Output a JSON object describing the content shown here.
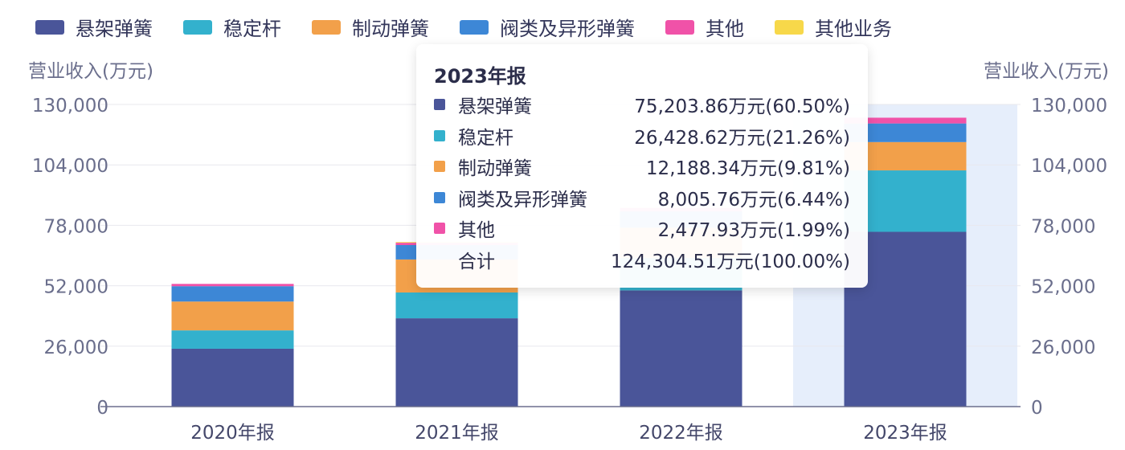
{
  "chart_data": {
    "type": "bar",
    "stacked": true,
    "categories": [
      "2020年报",
      "2021年报",
      "2022年报",
      "2023年报"
    ],
    "series": [
      {
        "name": "悬架弹簧",
        "color": "#4a5599",
        "values": [
          24900,
          38000,
          50000,
          75203.86
        ]
      },
      {
        "name": "稳定杆",
        "color": "#33b1cd",
        "values": [
          7900,
          11100,
          14000,
          26428.62
        ]
      },
      {
        "name": "制动弹簧",
        "color": "#f2a04a",
        "values": [
          12400,
          14200,
          13000,
          12188.34
        ]
      },
      {
        "name": "阀类及异形弹簧",
        "color": "#3d87d6",
        "values": [
          6600,
          6200,
          7000,
          8005.76
        ]
      },
      {
        "name": "其他",
        "color": "#f052a8",
        "values": [
          1000,
          1000,
          1500,
          2477.93
        ]
      },
      {
        "name": "其他业务",
        "color": "#f7d84a",
        "values": [
          0,
          300,
          0,
          0
        ]
      }
    ],
    "ylabel_left": "营业收入(万元)",
    "ylabel_right": "营业收入(万元)",
    "ylim": [
      0,
      130000
    ],
    "yticks": [
      0,
      26000,
      52000,
      78000,
      104000,
      130000
    ],
    "ytick_labels": [
      "0",
      "26,000",
      "52,000",
      "78,000",
      "104,000",
      "130,000"
    ],
    "grid": true,
    "legend": "top",
    "highlighted_category": "2023年报"
  },
  "tooltip": {
    "title": "2023年报",
    "rows": [
      {
        "label": "悬架弹簧",
        "value": "75,203.86万元(60.50%)",
        "color": "#4a5599"
      },
      {
        "label": "稳定杆",
        "value": "26,428.62万元(21.26%)",
        "color": "#33b1cd"
      },
      {
        "label": "制动弹簧",
        "value": "12,188.34万元(9.81%)",
        "color": "#f2a04a"
      },
      {
        "label": "阀类及异形弹簧",
        "value": "8,005.76万元(6.44%)",
        "color": "#3d87d6"
      },
      {
        "label": "其他",
        "value": "2,477.93万元(1.99%)",
        "color": "#f052a8"
      },
      {
        "label": "合计",
        "value": "124,304.51万元(100.00%)",
        "color": null
      }
    ]
  }
}
